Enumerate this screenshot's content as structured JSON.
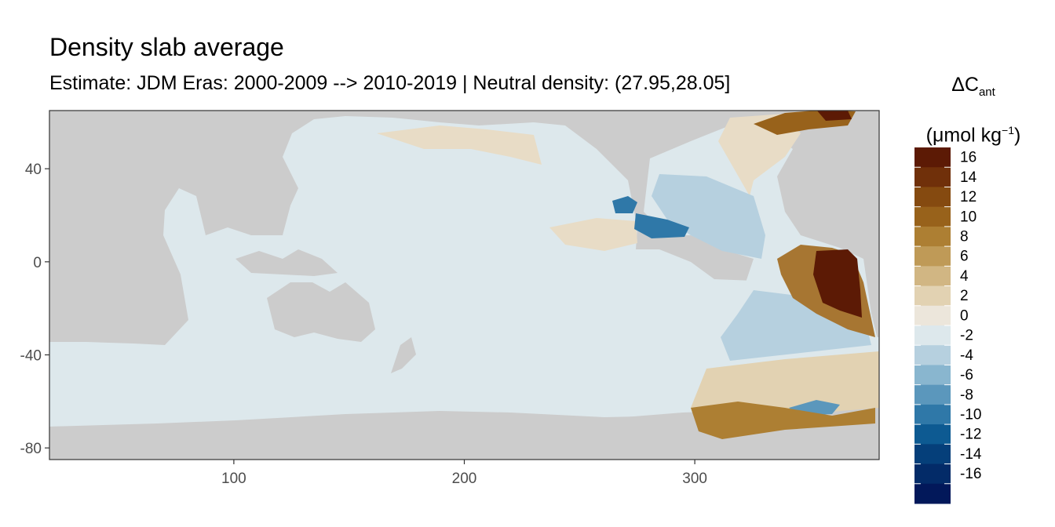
{
  "title": "Density slab average",
  "subtitle": "Estimate: JDM Eras: 2000-2009 --> 2010-2019 | Neutral density: (27.95,28.05]",
  "legend": {
    "title_main": "ΔC",
    "title_sub": "ant",
    "unit_open": "(μmol kg",
    "unit_sup": "−1",
    "unit_close": ")",
    "bins": [
      {
        "label": "16",
        "color": "#5c1a05"
      },
      {
        "label": "14",
        "color": "#70300a"
      },
      {
        "label": "12",
        "color": "#854a10"
      },
      {
        "label": "10",
        "color": "#98621b"
      },
      {
        "label": "8",
        "color": "#ad7f33"
      },
      {
        "label": "6",
        "color": "#bf9a57"
      },
      {
        "label": "4",
        "color": "#d1b683"
      },
      {
        "label": "2",
        "color": "#e2d2b2"
      },
      {
        "label": "0",
        "color": "#ece6db"
      },
      {
        "label": "-2",
        "color": "#dde8ec"
      },
      {
        "label": "-4",
        "color": "#b6d0df"
      },
      {
        "label": "-6",
        "color": "#89b6cf"
      },
      {
        "label": "-8",
        "color": "#5b97bc"
      },
      {
        "label": "-10",
        "color": "#2f78a8"
      },
      {
        "label": "-12",
        "color": "#0d5a92"
      },
      {
        "label": "-14",
        "color": "#053f7a"
      },
      {
        "label": "-16",
        "color": "#032b68"
      },
      {
        "label": "",
        "color": "#02185a"
      }
    ]
  },
  "map": {
    "x_range": [
      20,
      380
    ],
    "y_range": [
      -85,
      65
    ],
    "x_ticks": [
      100,
      200,
      300
    ],
    "y_ticks": [
      40,
      0,
      -40,
      -80
    ],
    "land_color": "#cccccc",
    "ocean_base_color": "#dde8ec",
    "missing_color": "#ffffff"
  }
}
